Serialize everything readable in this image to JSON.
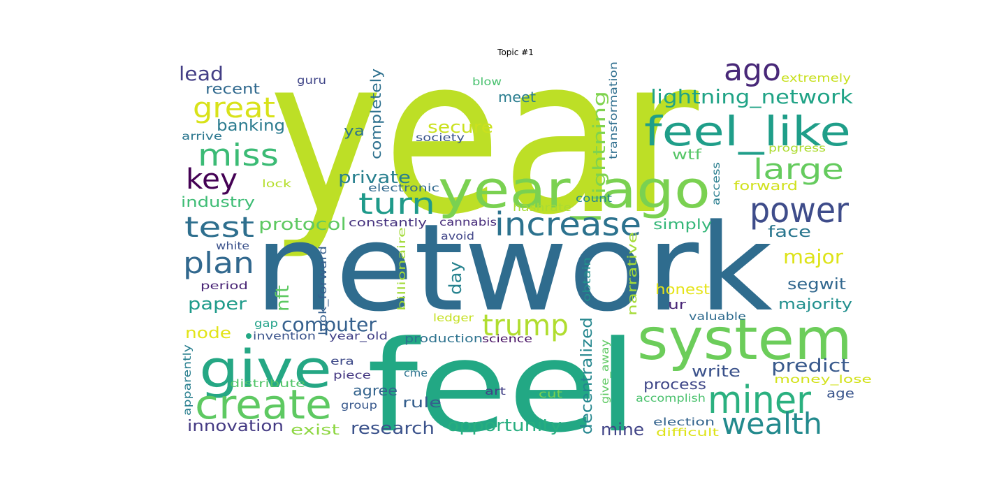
{
  "title": "Topic #1",
  "words": [
    {
      "text": "year",
      "color": "#bddf26"
    },
    {
      "text": "network",
      "color": "#2f6c8e"
    },
    {
      "text": "feel",
      "color": "#22a884"
    },
    {
      "text": "system",
      "color": "#6ccd5a"
    },
    {
      "text": "year_ago",
      "color": "#7ad151"
    },
    {
      "text": "feel_like",
      "color": "#1f9e89"
    },
    {
      "text": "give",
      "color": "#25a784"
    },
    {
      "text": "create",
      "color": "#5ec962"
    },
    {
      "text": "increase",
      "color": "#2c728e"
    },
    {
      "text": "miner",
      "color": "#2ab07f"
    },
    {
      "text": "power",
      "color": "#3e4c8a"
    },
    {
      "text": "ago",
      "color": "#482878"
    },
    {
      "text": "wealth",
      "color": "#238a8d"
    },
    {
      "text": "plan",
      "color": "#31688e"
    },
    {
      "text": "miss",
      "color": "#3bbb75"
    },
    {
      "text": "great",
      "color": "#d8e219"
    },
    {
      "text": "turn",
      "color": "#1f9a8a"
    },
    {
      "text": "trump",
      "color": "#b0dd2f"
    },
    {
      "text": "test",
      "color": "#2e6f8e"
    },
    {
      "text": "key",
      "color": "#440154"
    },
    {
      "text": "large",
      "color": "#65cb5e"
    },
    {
      "text": "lightning_network",
      "color": "#20a386"
    },
    {
      "text": "computer",
      "color": "#35608d"
    },
    {
      "text": "opportunity",
      "color": "#28ae80"
    },
    {
      "text": "decentralized",
      "color": "#24868e"
    },
    {
      "text": "protocol",
      "color": "#5ec962"
    },
    {
      "text": "research",
      "color": "#3b528b"
    },
    {
      "text": "major",
      "color": "#dde318"
    },
    {
      "text": "predict",
      "color": "#38598c"
    },
    {
      "text": "innovation",
      "color": "#443a83"
    },
    {
      "text": "lead",
      "color": "#433e85"
    },
    {
      "text": "lightning",
      "color": "#7fd34e"
    },
    {
      "text": "private",
      "color": "#277f8e"
    },
    {
      "text": "mine",
      "color": "#414487"
    },
    {
      "text": "paper",
      "color": "#1e9b8a"
    },
    {
      "text": "nft",
      "color": "#5ec962"
    },
    {
      "text": "day",
      "color": "#26828e"
    },
    {
      "text": "secure",
      "color": "#cae11f"
    },
    {
      "text": "completely",
      "color": "#2d708e"
    },
    {
      "text": "banking",
      "color": "#297a8e"
    },
    {
      "text": "node",
      "color": "#e2e418"
    },
    {
      "text": "face",
      "color": "#2a768e"
    },
    {
      "text": "write",
      "color": "#3b528b"
    },
    {
      "text": "segwit",
      "color": "#31678e"
    },
    {
      "text": "majority",
      "color": "#218f8d"
    },
    {
      "text": "agree",
      "color": "#33638d"
    },
    {
      "text": "process",
      "color": "#3f4788"
    },
    {
      "text": "exist",
      "color": "#8fd744"
    },
    {
      "text": "rule",
      "color": "#355f8d"
    },
    {
      "text": "simply",
      "color": "#35b779"
    },
    {
      "text": "meet",
      "color": "#287c8e"
    },
    {
      "text": "recent",
      "color": "#30698e"
    },
    {
      "text": "wtf",
      "color": "#56c667"
    },
    {
      "text": "industry",
      "color": "#3dbc74"
    },
    {
      "text": "honest",
      "color": "#e5e419"
    },
    {
      "text": "narrative",
      "color": "#a5db36"
    },
    {
      "text": "ya",
      "color": "#2c738e"
    },
    {
      "text": "forward",
      "color": "#d0e11c"
    },
    {
      "text": "ur",
      "color": "#482576"
    },
    {
      "text": "constantly",
      "color": "#46337f"
    },
    {
      "text": "production",
      "color": "#2c728e"
    },
    {
      "text": "age",
      "color": "#39558c"
    },
    {
      "text": "extremely",
      "color": "#c8e020"
    },
    {
      "text": "transformation",
      "color": "#2e6e8e"
    },
    {
      "text": "guru",
      "color": "#404688"
    },
    {
      "text": "blow",
      "color": "#48c16e"
    },
    {
      "text": "society",
      "color": "#3a548c"
    },
    {
      "text": "arrive",
      "color": "#2a768e"
    },
    {
      "text": "lock",
      "color": "#b5de2b"
    },
    {
      "text": "electronic",
      "color": "#30698e"
    },
    {
      "text": "count",
      "color": "#23888e"
    },
    {
      "text": "hashrate",
      "color": "#a8db34"
    },
    {
      "text": "access",
      "color": "#287d8e"
    },
    {
      "text": "progress",
      "color": "#addc30"
    },
    {
      "text": "cannabis",
      "color": "#472d7b"
    },
    {
      "text": "avoid",
      "color": "#404588"
    },
    {
      "text": "white",
      "color": "#3b528b"
    },
    {
      "text": "period",
      "color": "#482475"
    },
    {
      "text": "billionaire",
      "color": "#a2da37"
    },
    {
      "text": "look_forward",
      "color": "#355e8d"
    },
    {
      "text": "obtain",
      "color": "#21918c"
    },
    {
      "text": "ledger",
      "color": "#c5e021"
    },
    {
      "text": "valuable",
      "color": "#2f6b8e"
    },
    {
      "text": "gap",
      "color": "#1fa187"
    },
    {
      "text": "invention",
      "color": "#3a538b"
    },
    {
      "text": "year_old",
      "color": "#424086"
    },
    {
      "text": "science",
      "color": "#471063"
    },
    {
      "text": "apparently",
      "color": "#277e8e"
    },
    {
      "text": "era",
      "color": "#3e4a89"
    },
    {
      "text": "piece",
      "color": "#453882"
    },
    {
      "text": "cme",
      "color": "#2c728e"
    },
    {
      "text": "distribute",
      "color": "#52c569"
    },
    {
      "text": "give_away",
      "color": "#5ec962"
    },
    {
      "text": "money_lose",
      "color": "#d2e21b"
    },
    {
      "text": "art",
      "color": "#424086"
    },
    {
      "text": "cut",
      "color": "#7ad151"
    },
    {
      "text": "accomplish",
      "color": "#4ac16d"
    },
    {
      "text": "group",
      "color": "#38588c"
    },
    {
      "text": "election",
      "color": "#33638d"
    },
    {
      "text": "difficult",
      "color": "#dde318"
    }
  ]
}
